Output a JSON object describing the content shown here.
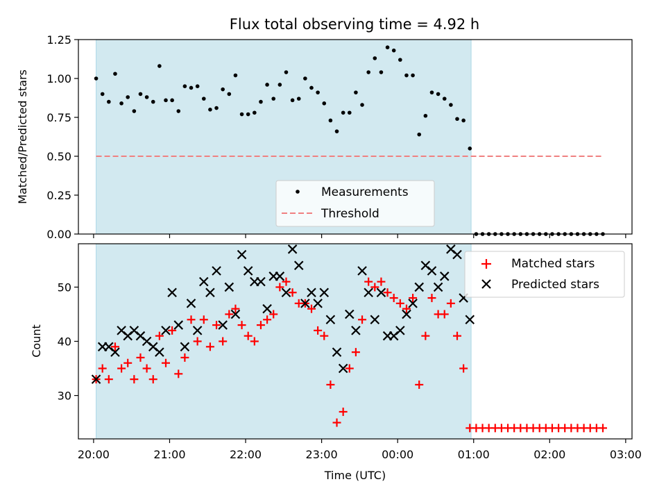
{
  "chart_data": [
    {
      "type": "scatter",
      "panel": "top",
      "title": "Flux total observing time = 4.92 h",
      "xlabel": "",
      "ylabel": "Matched/Predicted stars",
      "ylim": [
        0,
        1.25
      ],
      "yticks": [
        0.0,
        0.25,
        0.5,
        0.75,
        1.0,
        1.25
      ],
      "ytick_labels": [
        "0.00",
        "0.25",
        "0.50",
        "0.75",
        "1.00",
        "1.25"
      ],
      "xlim": [
        "19:48",
        "03:05"
      ],
      "xticks": [
        "20:00",
        "21:00",
        "22:00",
        "23:00",
        "00:00",
        "01:00",
        "02:00",
        "03:00"
      ],
      "shaded_interval": [
        "20:02",
        "00:58"
      ],
      "legend_position": "lower center",
      "series": [
        {
          "name": "Measurements",
          "type": "scatter",
          "marker": "dot",
          "color": "#000000",
          "x": [
            "20:02",
            "20:07",
            "20:12",
            "20:17",
            "20:22",
            "20:27",
            "20:32",
            "20:37",
            "20:42",
            "20:47",
            "20:52",
            "20:57",
            "21:02",
            "21:07",
            "21:12",
            "21:17",
            "21:22",
            "21:27",
            "21:32",
            "21:37",
            "21:42",
            "21:47",
            "21:52",
            "21:57",
            "22:02",
            "22:07",
            "22:12",
            "22:17",
            "22:22",
            "22:27",
            "22:32",
            "22:37",
            "22:42",
            "22:47",
            "22:52",
            "22:57",
            "23:02",
            "23:07",
            "23:12",
            "23:17",
            "23:22",
            "23:27",
            "23:32",
            "23:37",
            "23:42",
            "23:47",
            "23:52",
            "23:57",
            "00:02",
            "00:07",
            "00:12",
            "00:17",
            "00:22",
            "00:27",
            "00:32",
            "00:37",
            "00:42",
            "00:47",
            "00:52",
            "00:57",
            "01:02",
            "01:07",
            "01:12",
            "01:17",
            "01:22",
            "01:27",
            "01:32",
            "01:37",
            "01:42",
            "01:47",
            "01:52",
            "01:57",
            "02:02",
            "02:07",
            "02:12",
            "02:17",
            "02:22",
            "02:27",
            "02:32",
            "02:37",
            "02:42"
          ],
          "y": [
            1.0,
            0.9,
            0.85,
            1.03,
            0.84,
            0.88,
            0.79,
            0.9,
            0.88,
            0.85,
            1.08,
            0.86,
            0.86,
            0.79,
            0.95,
            0.94,
            0.95,
            0.87,
            0.8,
            0.81,
            0.93,
            0.9,
            1.02,
            0.77,
            0.77,
            0.78,
            0.85,
            0.96,
            0.87,
            0.96,
            1.04,
            0.86,
            0.87,
            1.0,
            0.94,
            0.91,
            0.84,
            0.73,
            0.66,
            0.78,
            0.78,
            0.91,
            0.83,
            1.04,
            1.13,
            1.04,
            1.2,
            1.18,
            1.12,
            1.02,
            1.02,
            0.64,
            0.76,
            0.91,
            0.9,
            0.87,
            0.83,
            0.74,
            0.73,
            0.55,
            0,
            0,
            0,
            0,
            0,
            0,
            0,
            0,
            0,
            0,
            0,
            0,
            0,
            0,
            0,
            0,
            0,
            0,
            0,
            0,
            0
          ]
        },
        {
          "name": "Threshold",
          "type": "line",
          "style": "dashed",
          "color": "#f08080",
          "x": [
            "20:02",
            "02:42"
          ],
          "y": [
            0.5,
            0.5
          ]
        }
      ]
    },
    {
      "type": "scatter",
      "panel": "bottom",
      "title": "",
      "xlabel": "Time (UTC)",
      "ylabel": "Count",
      "ylim": [
        22,
        58
      ],
      "yticks": [
        30,
        40,
        50
      ],
      "ytick_labels": [
        "30",
        "40",
        "50"
      ],
      "xlim": [
        "19:48",
        "03:05"
      ],
      "xticks": [
        "20:00",
        "21:00",
        "22:00",
        "23:00",
        "00:00",
        "01:00",
        "02:00",
        "03:00"
      ],
      "xtick_labels": [
        "20:00",
        "21:00",
        "22:00",
        "23:00",
        "00:00",
        "01:00",
        "02:00",
        "03:00"
      ],
      "shaded_interval": [
        "20:02",
        "00:58"
      ],
      "legend_position": "upper right",
      "series": [
        {
          "name": "Matched stars",
          "type": "scatter",
          "marker": "plus",
          "color": "#ff0000",
          "x": [
            "20:02",
            "20:07",
            "20:12",
            "20:17",
            "20:22",
            "20:27",
            "20:32",
            "20:37",
            "20:42",
            "20:47",
            "20:52",
            "20:57",
            "21:02",
            "21:07",
            "21:12",
            "21:17",
            "21:22",
            "21:27",
            "21:32",
            "21:37",
            "21:42",
            "21:47",
            "21:52",
            "21:57",
            "22:02",
            "22:07",
            "22:12",
            "22:17",
            "22:22",
            "22:27",
            "22:32",
            "22:37",
            "22:42",
            "22:47",
            "22:52",
            "22:57",
            "23:02",
            "23:07",
            "23:12",
            "23:17",
            "23:22",
            "23:27",
            "23:32",
            "23:37",
            "23:42",
            "23:47",
            "23:52",
            "23:57",
            "00:02",
            "00:07",
            "00:12",
            "00:17",
            "00:22",
            "00:27",
            "00:32",
            "00:37",
            "00:42",
            "00:47",
            "00:52",
            "00:57",
            "01:02",
            "01:07",
            "01:12",
            "01:17",
            "01:22",
            "01:27",
            "01:32",
            "01:37",
            "01:42",
            "01:47",
            "01:52",
            "01:57",
            "02:02",
            "02:07",
            "02:12",
            "02:17",
            "02:22",
            "02:27",
            "02:32",
            "02:37",
            "02:42"
          ],
          "y": [
            33,
            35,
            33,
            39,
            35,
            36,
            33,
            37,
            35,
            33,
            41,
            36,
            42,
            34,
            37,
            44,
            40,
            44,
            39,
            43,
            40,
            45,
            46,
            43,
            41,
            40,
            43,
            44,
            45,
            50,
            51,
            49,
            47,
            47,
            46,
            42,
            41,
            32,
            25,
            27,
            35,
            38,
            44,
            51,
            50,
            51,
            49,
            48,
            47,
            46,
            48,
            32,
            41,
            48,
            45,
            45,
            47,
            41,
            35,
            24,
            24,
            24,
            24,
            24,
            24,
            24,
            24,
            24,
            24,
            24,
            24,
            24,
            24,
            24,
            24,
            24,
            24,
            24,
            24,
            24,
            24
          ]
        },
        {
          "name": "Predicted stars",
          "type": "scatter",
          "marker": "x",
          "color": "#000000",
          "x": [
            "20:02",
            "20:07",
            "20:12",
            "20:17",
            "20:22",
            "20:27",
            "20:32",
            "20:37",
            "20:42",
            "20:47",
            "20:52",
            "20:57",
            "21:02",
            "21:07",
            "21:12",
            "21:17",
            "21:22",
            "21:27",
            "21:32",
            "21:37",
            "21:42",
            "21:47",
            "21:52",
            "21:57",
            "22:02",
            "22:07",
            "22:12",
            "22:17",
            "22:22",
            "22:27",
            "22:32",
            "22:37",
            "22:42",
            "22:47",
            "22:52",
            "22:57",
            "23:02",
            "23:07",
            "23:12",
            "23:17",
            "23:22",
            "23:27",
            "23:32",
            "23:37",
            "23:42",
            "23:47",
            "23:52",
            "23:57",
            "00:02",
            "00:07",
            "00:12",
            "00:17",
            "00:22",
            "00:27",
            "00:32",
            "00:37",
            "00:42",
            "00:47",
            "00:52",
            "00:57"
          ],
          "y": [
            33,
            39,
            39,
            38,
            42,
            41,
            42,
            41,
            40,
            39,
            38,
            42,
            49,
            43,
            39,
            47,
            42,
            51,
            49,
            53,
            43,
            50,
            45,
            56,
            53,
            51,
            51,
            46,
            52,
            52,
            49,
            57,
            54,
            47,
            49,
            47,
            49,
            44,
            38,
            35,
            45,
            42,
            53,
            49,
            44,
            49,
            41,
            41,
            42,
            45,
            47,
            50,
            54,
            53,
            50,
            52,
            57,
            56,
            48,
            44
          ]
        }
      ]
    }
  ],
  "legend_top": {
    "items": [
      "Measurements",
      "Threshold"
    ]
  },
  "legend_bottom": {
    "items": [
      "Matched stars",
      "Predicted stars"
    ]
  },
  "colors": {
    "shade": "#d2e9f0",
    "shade_edge": "#add8e6",
    "threshold": "#f08080",
    "matched": "#ff0000",
    "predicted": "#000000",
    "measurements": "#000000"
  }
}
